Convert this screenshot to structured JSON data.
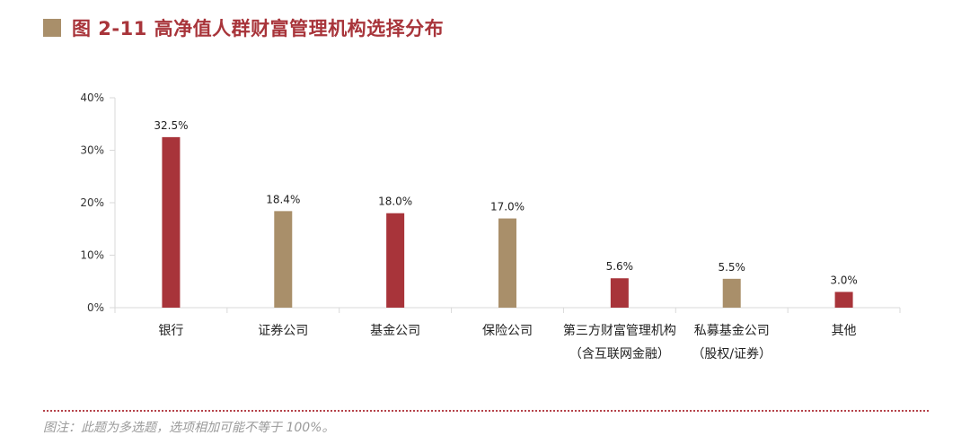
{
  "title": "图 2-11  高净值人群财富管理机构选择分布",
  "colors": {
    "title": "#a8343a",
    "title_square": "#a98f6a",
    "red": "#a8343a",
    "tan": "#a98f6a",
    "axis": "#d9d9d9",
    "dots": "#b5424a"
  },
  "note": "图注：此题为多选题，选项相加可能不等于 100%。",
  "chart_data": {
    "type": "bar",
    "categories": [
      [
        "银行"
      ],
      [
        "证券公司"
      ],
      [
        "基金公司"
      ],
      [
        "保险公司"
      ],
      [
        "第三方财富管理机构",
        "（含互联网金融）"
      ],
      [
        "私募基金公司",
        "（股权/证券）"
      ],
      [
        "其他"
      ]
    ],
    "values": [
      32.5,
      18.4,
      18.0,
      17.0,
      5.6,
      5.5,
      3.0
    ],
    "value_labels": [
      "32.5%",
      "18.4%",
      "18.0%",
      "17.0%",
      "5.6%",
      "5.5%",
      "3.0%"
    ],
    "bar_colors": [
      "red",
      "tan",
      "red",
      "tan",
      "red",
      "tan",
      "red"
    ],
    "yticks": [
      0,
      10,
      20,
      30,
      40
    ],
    "ytick_labels": [
      "0%",
      "10%",
      "20%",
      "30%",
      "40%"
    ],
    "ylim": [
      0,
      40
    ],
    "grid": false,
    "legend": "none"
  }
}
